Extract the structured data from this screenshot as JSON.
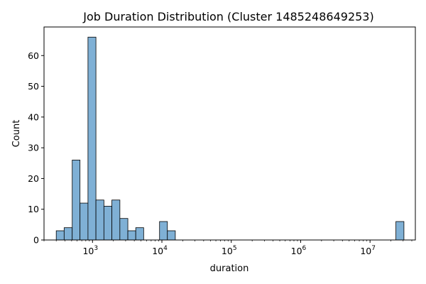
{
  "chart_data": {
    "type": "bar",
    "title": "Job Duration Distribution (Cluster 1485248649253)",
    "xlabel": "duration",
    "ylabel": "Count",
    "x_scale": "log",
    "xlim": [
      200,
      45000000
    ],
    "ylim": [
      0,
      69.3
    ],
    "y_ticks": [
      0,
      10,
      20,
      30,
      40,
      50,
      60
    ],
    "x_ticks": [
      {
        "value": 1000,
        "base": "10",
        "exp": "3"
      },
      {
        "value": 10000,
        "base": "10",
        "exp": "4"
      },
      {
        "value": 100000,
        "base": "10",
        "exp": "5"
      },
      {
        "value": 1000000,
        "base": "10",
        "exp": "6"
      },
      {
        "value": 10000000,
        "base": "10",
        "exp": "7"
      }
    ],
    "bar_color": "#7fb0d5",
    "bar_edge_color": "#000000",
    "bins": [
      {
        "x0": 300,
        "x1": 390,
        "count": 3
      },
      {
        "x0": 390,
        "x1": 510,
        "count": 4
      },
      {
        "x0": 510,
        "x1": 660,
        "count": 26
      },
      {
        "x0": 660,
        "x1": 860,
        "count": 12
      },
      {
        "x0": 860,
        "x1": 1120,
        "count": 66
      },
      {
        "x0": 1120,
        "x1": 1460,
        "count": 13
      },
      {
        "x0": 1460,
        "x1": 1900,
        "count": 11
      },
      {
        "x0": 1900,
        "x1": 2480,
        "count": 13
      },
      {
        "x0": 2480,
        "x1": 3230,
        "count": 7
      },
      {
        "x0": 3230,
        "x1": 4200,
        "count": 3
      },
      {
        "x0": 4200,
        "x1": 5460,
        "count": 4
      },
      {
        "x0": 5460,
        "x1": 7100,
        "count": 0
      },
      {
        "x0": 7100,
        "x1": 9250,
        "count": 0
      },
      {
        "x0": 9250,
        "x1": 12000,
        "count": 6
      },
      {
        "x0": 12000,
        "x1": 15600,
        "count": 3
      },
      {
        "x0": 23600000,
        "x1": 30800000,
        "count": 6
      }
    ]
  }
}
